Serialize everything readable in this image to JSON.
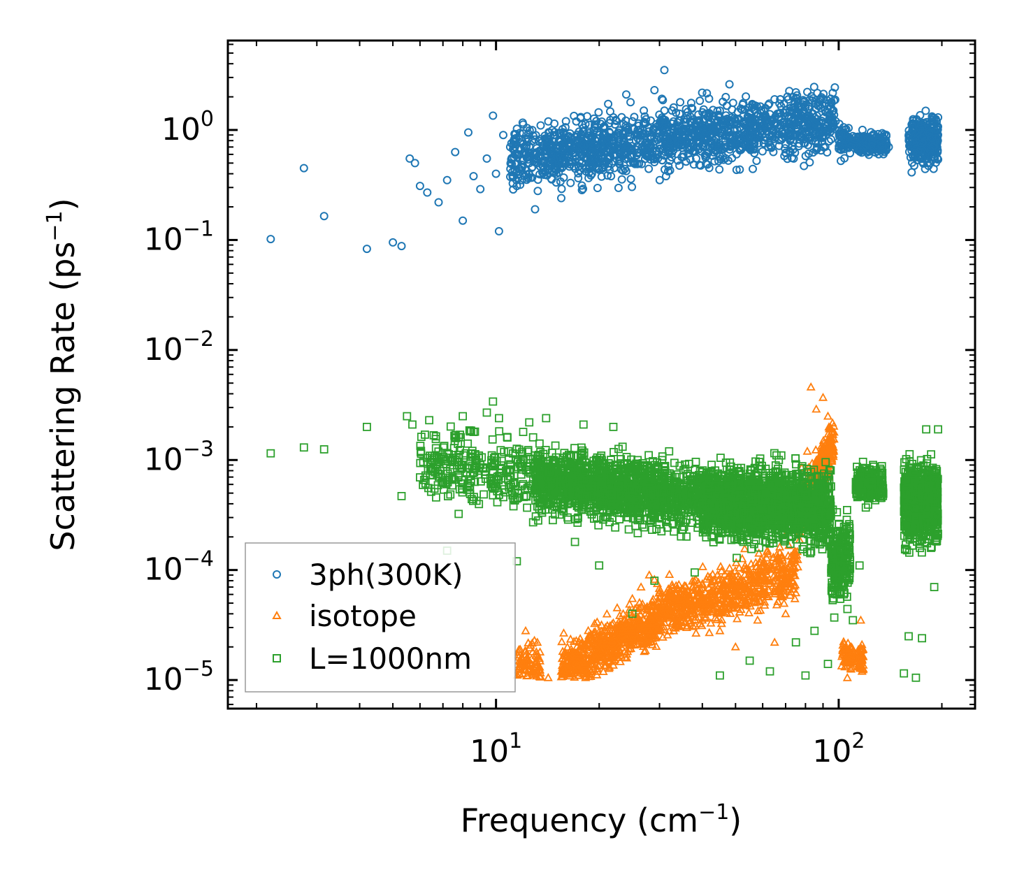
{
  "chart_data": {
    "type": "scatter",
    "xscale": "log",
    "yscale": "log",
    "xlim": [
      1.65,
      250
    ],
    "ylim": [
      5.5e-06,
      6.5
    ],
    "xlabel": {
      "main": "Frequency (cm",
      "sup": "−1",
      "end": ")"
    },
    "ylabel": {
      "main": "Scattering Rate (ps",
      "sup": "−1",
      "end": ")"
    },
    "xticks": [
      {
        "value": 10,
        "base": "10",
        "exp": "1"
      },
      {
        "value": 100,
        "base": "10",
        "exp": "2"
      }
    ],
    "yticks": [
      {
        "value": 1,
        "base": "10",
        "exp": "0"
      },
      {
        "value": 0.1,
        "base": "10",
        "exp": "−1"
      },
      {
        "value": 0.01,
        "base": "10",
        "exp": "−2"
      },
      {
        "value": 0.001,
        "base": "10",
        "exp": "−3"
      },
      {
        "value": 0.0001,
        "base": "10",
        "exp": "−4"
      },
      {
        "value": 1e-05,
        "base": "10",
        "exp": "−5"
      }
    ],
    "legend_position": "lower-left",
    "series": [
      {
        "name": "3ph(300K)",
        "marker": "circle",
        "color": "#1f77b4",
        "points": [
          [
            2.2,
            0.102
          ],
          [
            2.75,
            0.45
          ],
          [
            3.15,
            0.165
          ],
          [
            4.2,
            0.083
          ],
          [
            5.0,
            0.095
          ],
          [
            5.3,
            0.088
          ],
          [
            5.6,
            0.55
          ],
          [
            5.8,
            0.5
          ],
          [
            6.0,
            0.31
          ],
          [
            6.3,
            0.27
          ],
          [
            6.8,
            0.22
          ],
          [
            7.2,
            0.35
          ],
          [
            7.6,
            0.63
          ],
          [
            8.0,
            0.15
          ],
          [
            8.3,
            0.95
          ],
          [
            8.6,
            0.38
          ],
          [
            9.0,
            0.29
          ],
          [
            9.4,
            0.55
          ],
          [
            9.8,
            1.35
          ],
          [
            10.0,
            0.4
          ],
          [
            10.2,
            0.12
          ],
          [
            10.5,
            0.9
          ],
          [
            11.0,
            0.7
          ],
          [
            11.5,
            0.31
          ],
          [
            12.0,
            1.12
          ],
          [
            12.5,
            0.5
          ],
          [
            13.0,
            0.19
          ],
          [
            13.5,
            1.1
          ],
          [
            14.0,
            0.8
          ],
          [
            14.5,
            0.55
          ],
          [
            15.0,
            0.4
          ],
          [
            15.5,
            0.24
          ],
          [
            16.0,
            1.2
          ],
          [
            16.5,
            0.33
          ],
          [
            17.0,
            0.7
          ],
          [
            18.0,
            1.05
          ],
          [
            19.0,
            0.6
          ],
          [
            20.0,
            0.9
          ],
          [
            21.0,
            0.75
          ],
          [
            22.0,
            1.3
          ],
          [
            23.0,
            0.6
          ],
          [
            24.0,
            2.1
          ],
          [
            25.0,
            1.2
          ],
          [
            26.0,
            0.9
          ],
          [
            27.0,
            1.5
          ],
          [
            28.0,
            0.7
          ],
          [
            29.0,
            2.3
          ],
          [
            30.0,
            1.1
          ],
          [
            31.0,
            3.5
          ],
          [
            32.0,
            0.85
          ],
          [
            33.0,
            1.6
          ],
          [
            35.0,
            1.0
          ],
          [
            37.0,
            1.2
          ],
          [
            39.0,
            0.8
          ],
          [
            41.0,
            1.4
          ],
          [
            43.0,
            1.0
          ],
          [
            45.0,
            1.5
          ],
          [
            48.0,
            2.6
          ],
          [
            50.0,
            1.2
          ],
          [
            53.0,
            0.95
          ],
          [
            56.0,
            1.6
          ],
          [
            60.0,
            1.3
          ],
          [
            65.0,
            1.9
          ],
          [
            70.0,
            1.5
          ],
          [
            75.0,
            2.2
          ],
          [
            80.0,
            1.6
          ],
          [
            85.0,
            1.3
          ],
          [
            90.0,
            1.9
          ],
          [
            95.0,
            1.6
          ],
          [
            98.0,
            1.2
          ],
          [
            105.0,
            0.75
          ],
          [
            110.0,
            0.88
          ],
          [
            120.0,
            0.72
          ],
          [
            130.0,
            0.78
          ],
          [
            140.0,
            0.7
          ],
          [
            165.0,
            1.05
          ],
          [
            175.0,
            0.85
          ],
          [
            185.0,
            0.65
          ],
          [
            195.0,
            1.3
          ]
        ],
        "clouds": [
          {
            "x": [
              11,
              98
            ],
            "y0": [
              0.55,
              1.25
            ],
            "spread": 0.55,
            "n": 1500
          },
          {
            "x": [
              100,
              108
            ],
            "y0": [
              0.8,
              0.8
            ],
            "spread": 0.25,
            "n": 70
          },
          {
            "x": [
              112,
              138
            ],
            "y0": [
              0.75,
              0.75
            ],
            "spread": 0.18,
            "n": 160
          },
          {
            "x": [
              160,
              195
            ],
            "y0": [
              0.8,
              0.8
            ],
            "spread": 0.4,
            "n": 320
          }
        ]
      },
      {
        "name": "isotope",
        "marker": "triangle",
        "color": "#ff7f0e",
        "points": [
          [
            12.2,
            2.8e-05
          ],
          [
            12.8,
            1.8e-05
          ],
          [
            13.2,
            2.2e-05
          ],
          [
            14.2,
            1.05e-05
          ],
          [
            15.5,
            1.2e-05
          ],
          [
            16.8,
            1.6e-05
          ],
          [
            17.5,
            2.2e-05
          ],
          [
            19.0,
            1.4e-05
          ],
          [
            20.5,
            2.5e-05
          ],
          [
            22.0,
            3.3e-05
          ],
          [
            23.5,
            4e-05
          ],
          [
            25.0,
            5.5e-05
          ],
          [
            26.5,
            7e-05
          ],
          [
            28.0,
            9e-05
          ],
          [
            29.0,
            8.2e-05
          ],
          [
            30.0,
            5.5e-05
          ],
          [
            33.0,
            2.8e-05
          ],
          [
            36.0,
            4.5e-05
          ],
          [
            40.0,
            3.5e-05
          ],
          [
            45.0,
            2.8e-05
          ],
          [
            50.0,
            2e-05
          ],
          [
            58.0,
            3.5e-05
          ],
          [
            65.0,
            2.2e-05
          ],
          [
            70.0,
            4e-05
          ],
          [
            75.0,
            6.2e-05
          ],
          [
            78.0,
            0.00085
          ],
          [
            81.0,
            0.0012
          ],
          [
            83.0,
            0.0046
          ],
          [
            86.0,
            0.0029
          ],
          [
            90.0,
            0.0037
          ],
          [
            93.0,
            0.0025
          ],
          [
            95.0,
            0.0011
          ],
          [
            104.0,
            1.5e-05
          ],
          [
            106.0,
            1.05e-05
          ],
          [
            108.0,
            2e-05
          ],
          [
            116.0,
            3.5e-05
          ],
          [
            117.0,
            1.2e-05
          ]
        ],
        "clouds": [
          {
            "x": [
              11.5,
              13.5
            ],
            "y0": [
              1.4e-05,
              1.4e-05
            ],
            "spread": 0.32,
            "n": 80
          },
          {
            "x": [
              15.5,
              29.5
            ],
            "y0": [
              1.3e-05,
              3.5e-05
            ],
            "spread": 0.4,
            "n": 650
          },
          {
            "x": [
              29.5,
              76
            ],
            "y0": [
              4e-05,
              0.0001
            ],
            "spread": 0.5,
            "n": 700
          },
          {
            "x": [
              76,
              97
            ],
            "y0": [
              0.0003,
              0.0015
            ],
            "spread": 0.38,
            "n": 450
          },
          {
            "x": [
              102,
              110
            ],
            "y0": [
              1.6e-05,
              1.6e-05
            ],
            "spread": 0.25,
            "n": 70
          },
          {
            "x": [
              114,
              118
            ],
            "y0": [
              1.6e-05,
              1.6e-05
            ],
            "spread": 0.25,
            "n": 50
          }
        ]
      },
      {
        "name": "L=1000nm",
        "marker": "square",
        "color": "#2ca02c",
        "points": [
          [
            2.2,
            0.00115
          ],
          [
            2.75,
            0.0013
          ],
          [
            3.15,
            0.00125
          ],
          [
            4.2,
            0.002
          ],
          [
            5.3,
            0.00047
          ],
          [
            5.5,
            0.0025
          ],
          [
            5.7,
            0.0021
          ],
          [
            6.2,
            0.0017
          ],
          [
            6.8,
            0.00105
          ],
          [
            7.2,
            0.00015
          ],
          [
            7.5,
            0.00105
          ],
          [
            8.0,
            0.0025
          ],
          [
            8.6,
            0.0018
          ],
          [
            9.0,
            0.0009
          ],
          [
            9.4,
            0.0027
          ],
          [
            9.8,
            0.0034
          ],
          [
            10.2,
            0.0024
          ],
          [
            10.8,
            0.0016
          ],
          [
            11.5,
            0.00012
          ],
          [
            12.0,
            0.0018
          ],
          [
            12.5,
            0.0022
          ],
          [
            13.0,
            0.0011
          ],
          [
            14.0,
            0.0024
          ],
          [
            15.0,
            0.00085
          ],
          [
            17.0,
            0.00018
          ],
          [
            18.0,
            0.0021
          ],
          [
            20.0,
            0.00011
          ],
          [
            22.0,
            0.002
          ],
          [
            25.0,
            4e-05
          ],
          [
            29.0,
            8e-05
          ],
          [
            32.0,
            0.0012
          ],
          [
            38.0,
            9.5e-05
          ],
          [
            45.0,
            1.1e-05
          ],
          [
            55.0,
            1.5e-05
          ],
          [
            63.0,
            1.2e-05
          ],
          [
            68.0,
            0.0011
          ],
          [
            75.0,
            2.2e-05
          ],
          [
            80.0,
            1.1e-05
          ],
          [
            85.0,
            2.8e-05
          ],
          [
            93.0,
            1.4e-05
          ],
          [
            110.0,
            3.5e-05
          ],
          [
            115.0,
            0.00011
          ],
          [
            155.0,
            1.15e-05
          ],
          [
            160.0,
            2.5e-05
          ],
          [
            168.0,
            1.05e-05
          ],
          [
            175.0,
            2.4e-05
          ],
          [
            180.0,
            0.0019
          ],
          [
            190.0,
            7e-05
          ],
          [
            195.0,
            0.0019
          ]
        ],
        "clouds": [
          {
            "x": [
              6,
              13
            ],
            "y0": [
              0.001,
              0.0007
            ],
            "spread": 0.6,
            "n": 280
          },
          {
            "x": [
              13,
              40
            ],
            "y0": [
              0.00065,
              0.00045
            ],
            "spread": 0.55,
            "n": 1400
          },
          {
            "x": [
              40,
              95
            ],
            "y0": [
              0.00042,
              0.00035
            ],
            "spread": 0.62,
            "n": 1800
          },
          {
            "x": [
              95,
              108
            ],
            "y0": [
              0.00012,
              0.00012
            ],
            "spread": 0.7,
            "n": 220
          },
          {
            "x": [
              112,
              135
            ],
            "y0": [
              0.0006,
              0.0006
            ],
            "spread": 0.28,
            "n": 220
          },
          {
            "x": [
              155,
              195
            ],
            "y0": [
              0.0004,
              0.0004
            ],
            "spread": 0.65,
            "n": 750
          }
        ]
      }
    ]
  }
}
